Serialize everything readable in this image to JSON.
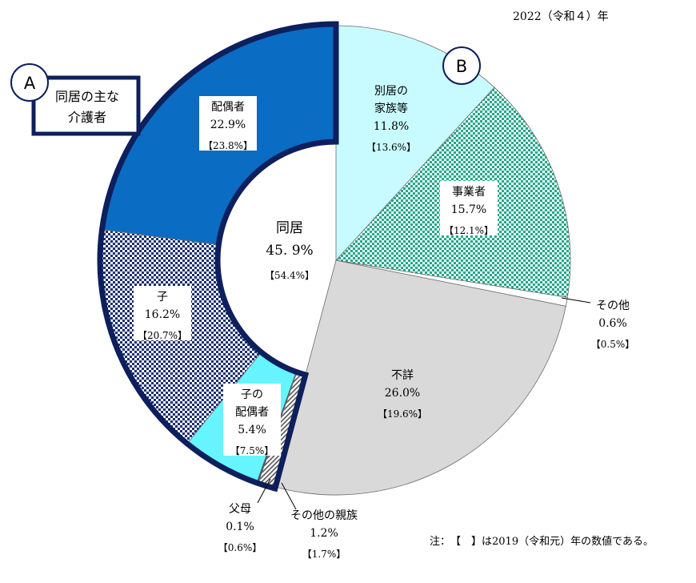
{
  "chart_data": {
    "type": "pie",
    "year_label": "2022（令和４）年",
    "note": "注：　【　】は2019（令和元）年の数値である。",
    "center": {
      "title": "同居",
      "value_text": "45. 9%",
      "previous_text": "【54.4%】"
    },
    "groups": [
      {
        "marker": "A",
        "label": "同居の主な介護者",
        "total": 45.9,
        "previous": 54.4
      },
      {
        "marker": "B",
        "label": "",
        "total": 54.1
      }
    ],
    "slices": [
      {
        "key": "spouse",
        "lines": [
          "配偶者"
        ],
        "value": 22.9,
        "value_text": "22.9%",
        "previous_text": "【23.8%】",
        "color": "#0a6cc2",
        "pattern": "solid",
        "group": "A"
      },
      {
        "key": "child",
        "lines": [
          "子"
        ],
        "value": 16.2,
        "value_text": "16.2%",
        "previous_text": "【20.7%】",
        "color": "#1c2f70",
        "pattern": "checker",
        "group": "A"
      },
      {
        "key": "child_spouse",
        "lines": [
          "子の",
          "配偶者"
        ],
        "value": 5.4,
        "value_text": "5.4%",
        "previous_text": "【7.5%】",
        "color": "#66f5ff",
        "pattern": "solid",
        "group": "A"
      },
      {
        "key": "parent",
        "lines": [
          "父母"
        ],
        "value": 0.1,
        "value_text": "0.1%",
        "previous_text": "【0.6%】",
        "color": "#2a4a88",
        "pattern": "solid",
        "group": "A"
      },
      {
        "key": "other_relatives",
        "lines": [
          "その他の親族"
        ],
        "value": 1.2,
        "value_text": "1.2%",
        "previous_text": "【1.7%】",
        "color": "#888888",
        "pattern": "hatch",
        "group": "A"
      },
      {
        "key": "unknown",
        "lines": [
          "不詳"
        ],
        "value": 26.0,
        "value_text": "26.0%",
        "previous_text": "【19.6%】",
        "color": "#d9d9d9",
        "pattern": "solid",
        "group": "B"
      },
      {
        "key": "other",
        "lines": [
          "その他"
        ],
        "value": 0.6,
        "value_text": "0.6%",
        "previous_text": "【0.5%】",
        "color": "#ffffff",
        "pattern": "solid",
        "group": "B"
      },
      {
        "key": "business",
        "lines": [
          "事業者"
        ],
        "value": 15.7,
        "value_text": "15.7%",
        "previous_text": "【12.1%】",
        "color": "#1fa98a",
        "pattern": "checker",
        "group": "B"
      },
      {
        "key": "separate_family",
        "lines": [
          "別居の",
          "家族等"
        ],
        "value": 11.8,
        "value_text": "11.8%",
        "previous_text": "【13.6%】",
        "color": "#c8fbff",
        "pattern": "solid",
        "group": "B"
      }
    ]
  }
}
